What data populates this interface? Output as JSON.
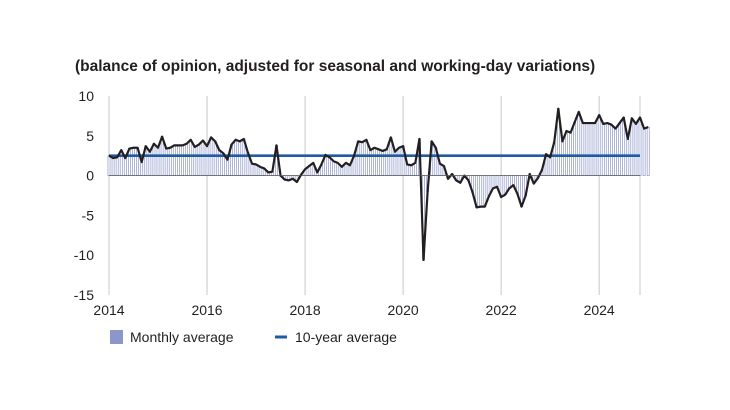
{
  "chart_data": {
    "type": "bar",
    "subtitle": "(balance of opinion, adjusted for seasonal and working-day variations)",
    "xlim": [
      2014.0,
      2024.833
    ],
    "ylim": [
      -15,
      10
    ],
    "x_ticks": [
      2014,
      2016,
      2018,
      2020,
      2022,
      2024
    ],
    "y_ticks": [
      10,
      5,
      0,
      -5,
      -10,
      -15
    ],
    "grid": "vertical",
    "x_start": 2014.0,
    "x_step": 0.0833333,
    "series": [
      {
        "name": "Monthly average",
        "kind": "bar-and-line",
        "color": "#8c96c8",
        "line_color": "#231f20",
        "values": [
          2.5,
          2.2,
          2.3,
          3.2,
          2.2,
          3.4,
          3.5,
          3.5,
          1.7,
          3.7,
          3.0,
          4.0,
          3.5,
          4.9,
          3.4,
          3.5,
          3.8,
          3.8,
          3.8,
          4.0,
          4.5,
          3.6,
          3.9,
          4.4,
          3.7,
          4.8,
          4.3,
          3.2,
          2.8,
          2.0,
          3.9,
          4.5,
          4.3,
          4.6,
          2.9,
          1.5,
          1.4,
          1.1,
          0.9,
          0.4,
          0.5,
          3.8,
          0.0,
          -0.5,
          -0.6,
          -0.4,
          -0.8,
          0.1,
          0.8,
          1.2,
          1.6,
          0.4,
          1.4,
          2.6,
          2.3,
          1.8,
          1.6,
          1.1,
          1.6,
          1.3,
          2.5,
          4.3,
          4.2,
          4.5,
          3.2,
          3.5,
          3.3,
          3.1,
          3.3,
          4.8,
          3.0,
          3.5,
          3.7,
          1.4,
          1.3,
          1.6,
          4.6,
          -10.6,
          -2.0,
          4.3,
          3.5,
          1.5,
          1.2,
          -0.4,
          0.2,
          -0.6,
          -0.9,
          0.0,
          -0.6,
          -2.1,
          -4.0,
          -3.9,
          -3.9,
          -2.6,
          -1.6,
          -1.4,
          -2.7,
          -2.4,
          -1.6,
          -1.2,
          -2.3,
          -3.9,
          -2.5,
          0.2,
          -1.0,
          -0.3,
          0.7,
          2.7,
          2.3,
          4.2,
          8.4,
          4.3,
          5.6,
          5.4,
          6.7,
          8.0,
          6.6,
          6.6,
          6.6,
          6.6,
          7.6,
          6.5,
          6.6,
          6.4,
          5.9,
          6.6,
          7.3,
          4.6,
          7.2,
          6.5,
          7.3,
          5.9,
          6.1
        ]
      },
      {
        "name": "10-year average",
        "kind": "line",
        "color": "#1f5aa6",
        "value": 2.5
      }
    ],
    "legend": [
      {
        "label": "Monthly average",
        "swatch": "bar"
      },
      {
        "label": "10-year average",
        "swatch": "line"
      }
    ],
    "legend_position": "bottom-left"
  }
}
